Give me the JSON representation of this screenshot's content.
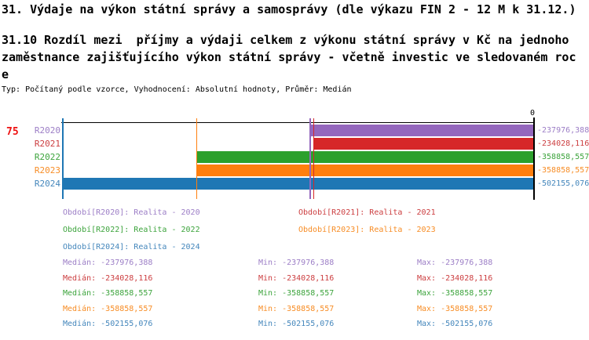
{
  "header": {
    "title": "31. Výdaje na výkon státní správy a samosprávy (dle výkazu FIN 2 - 12 M k 31.12.)",
    "subtitle_lines": [
      "31.10 Rozdíl mezi  příjmy a výdaji celkem z výkonu státní správy v Kč na jednoho",
      "zaměstnance zajišťujícího výkon státní správy - včetně investic ve sledovaném roc",
      "e"
    ],
    "meta_line": "Typ: Počítaný podle vzorce, Vyhodnocení: Absolutní hodnoty, Průměr: Medián"
  },
  "indicator_number": "75",
  "indicator_color": "#ee1111",
  "chart_data": {
    "type": "bar",
    "orientation": "horizontal",
    "axis": {
      "zero_label": "0",
      "min_value": -502155.076,
      "max_value": 0,
      "zero_position": "right"
    },
    "categories": [
      "R2020",
      "R2021",
      "R2022",
      "R2023",
      "R2024"
    ],
    "stats_labels": {
      "median": "Medián",
      "min": "Min",
      "max": "Max",
      "separator": ": "
    },
    "series": [
      {
        "name": "R2020",
        "value": -237976.388,
        "value_label": "-237976,388",
        "legend_label": "Období[R2020]: Realita - 2020",
        "bar_color": "#9467bd",
        "text_color": "#9c7ec6",
        "stats": {
          "median": "-237976,388",
          "min": "-237976,388",
          "max": "-237976,388"
        }
      },
      {
        "name": "R2021",
        "value": -234028.116,
        "value_label": "-234028,116",
        "legend_label": "Období[R2021]: Realita - 2021",
        "bar_color": "#d62728",
        "text_color": "#cc3e40",
        "stats": {
          "median": "-234028,116",
          "min": "-234028,116",
          "max": "-234028,116"
        }
      },
      {
        "name": "R2022",
        "value": -358858.557,
        "value_label": "-358858,557",
        "legend_label": "Období[R2022]: Realita - 2022",
        "bar_color": "#2ca02c",
        "text_color": "#3da43d",
        "stats": {
          "median": "-358858,557",
          "min": "-358858,557",
          "max": "-358858,557"
        }
      },
      {
        "name": "R2023",
        "value": -358858.557,
        "value_label": "-358858,557",
        "legend_label": "Období[R2023]: Realita - 2023",
        "bar_color": "#ff7f0e",
        "text_color": "#f78d26",
        "stats": {
          "median": "-358858,557",
          "min": "-358858,557",
          "max": "-358858,557"
        }
      },
      {
        "name": "R2024",
        "value": -502155.076,
        "value_label": "-502155,076",
        "legend_label": "Období[R2024]: Realita - 2024",
        "bar_color": "#1f77b4",
        "text_color": "#4587bc",
        "stats": {
          "median": "-502155,076",
          "min": "-502155,076",
          "max": "-502155,076"
        }
      }
    ]
  }
}
